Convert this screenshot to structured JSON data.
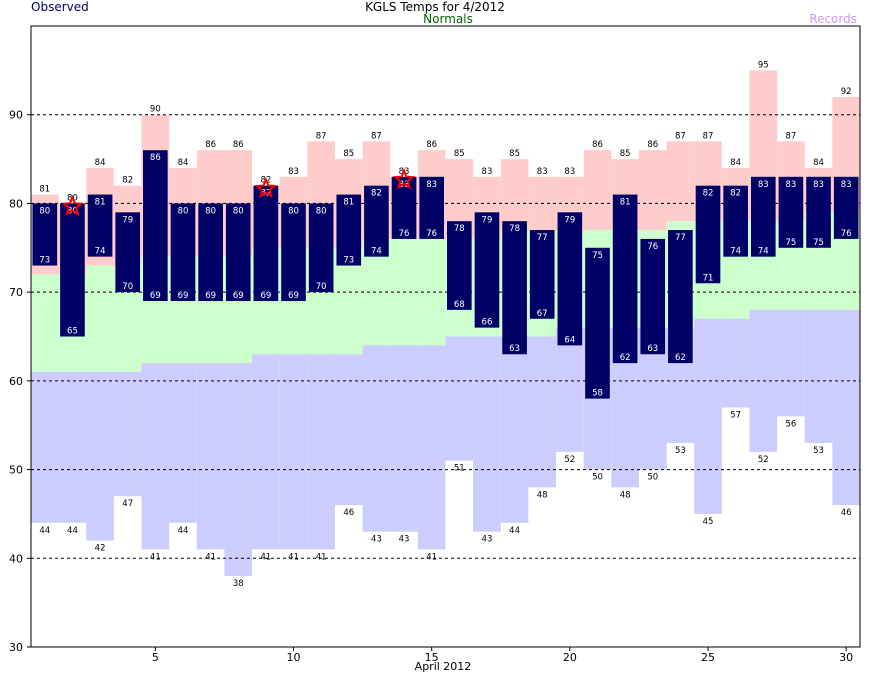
{
  "chart_data": {
    "type": "bar",
    "title": "KGLS Temps for 4/2012",
    "xlabel": "April 2012",
    "ylabel": "",
    "xlim": [
      1,
      30
    ],
    "ylim": [
      30,
      100
    ],
    "y_ticks": [
      30,
      40,
      50,
      60,
      70,
      80,
      90
    ],
    "x_ticks": [
      5,
      10,
      15,
      20,
      25,
      30
    ],
    "grid": "horizontal dashed at y ticks",
    "legend": [
      {
        "name": "Observed",
        "color": "#000066",
        "placement": "top-left"
      },
      {
        "name": "Normals",
        "color": "#006600",
        "placement": "top-center"
      },
      {
        "name": "Records",
        "color": "#cc99ff",
        "placement": "top-right"
      }
    ],
    "days": [
      1,
      2,
      3,
      4,
      5,
      6,
      7,
      8,
      9,
      10,
      11,
      12,
      13,
      14,
      15,
      16,
      17,
      18,
      19,
      20,
      21,
      22,
      23,
      24,
      25,
      26,
      27,
      28,
      29,
      30
    ],
    "observed_high": [
      80,
      80,
      81,
      79,
      86,
      80,
      80,
      80,
      82,
      80,
      80,
      81,
      82,
      83,
      83,
      78,
      79,
      78,
      77,
      79,
      75,
      81,
      76,
      77,
      82,
      82,
      83,
      83,
      83,
      83
    ],
    "observed_low": [
      73,
      65,
      74,
      70,
      69,
      69,
      69,
      69,
      69,
      69,
      70,
      73,
      74,
      76,
      76,
      68,
      66,
      63,
      67,
      64,
      58,
      62,
      63,
      62,
      71,
      74,
      74,
      75,
      75,
      76
    ],
    "normal_high": [
      72,
      72,
      73,
      73,
      74,
      74,
      74,
      74,
      75,
      75,
      75,
      75,
      76,
      76,
      76,
      76,
      76,
      77,
      77,
      77,
      77,
      77,
      77,
      78,
      78,
      78,
      78,
      78,
      79,
      79
    ],
    "normal_low": [
      61,
      61,
      61,
      61,
      62,
      62,
      62,
      62,
      63,
      63,
      63,
      63,
      64,
      64,
      64,
      65,
      65,
      65,
      65,
      66,
      66,
      66,
      66,
      66,
      67,
      67,
      68,
      68,
      68,
      68
    ],
    "record_high": [
      81,
      80,
      84,
      82,
      90,
      84,
      86,
      86,
      82,
      83,
      87,
      85,
      87,
      83,
      86,
      85,
      83,
      85,
      83,
      83,
      86,
      85,
      86,
      87,
      87,
      84,
      95,
      87,
      84,
      92
    ],
    "record_low": [
      44,
      44,
      42,
      47,
      41,
      44,
      41,
      38,
      41,
      41,
      41,
      46,
      43,
      43,
      41,
      51,
      43,
      44,
      48,
      52,
      50,
      48,
      50,
      53,
      45,
      57,
      52,
      56,
      53,
      46
    ],
    "record_high_markers": [
      2,
      9,
      14
    ],
    "colors": {
      "observed": "#000066",
      "observed_label": "#ffffff",
      "normal_band": "#ccffcc",
      "record_high_band": "#ffcccc",
      "record_low_band": "#ccccff",
      "star": "#ff0000",
      "grid": "#000000"
    }
  }
}
